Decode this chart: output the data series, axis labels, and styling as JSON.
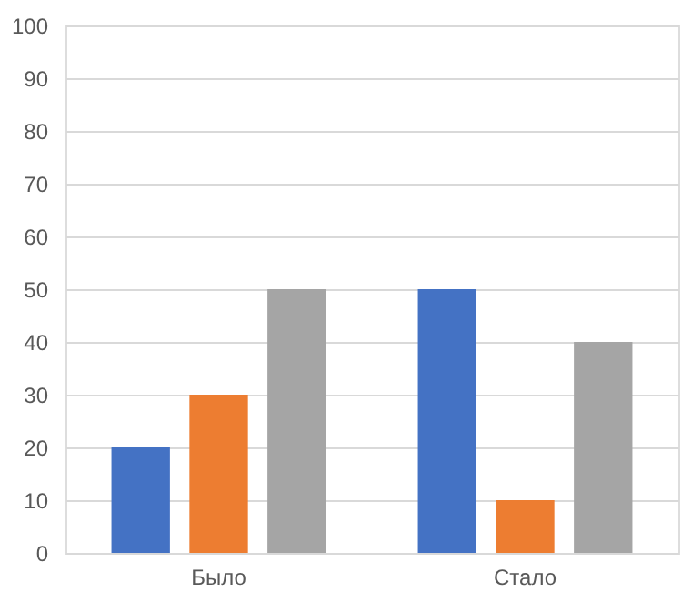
{
  "chart_data": {
    "type": "bar",
    "categories": [
      "Было",
      "Стало"
    ],
    "series": [
      {
        "color": "#4472c4",
        "values": [
          20,
          50
        ]
      },
      {
        "color": "#ed7d31",
        "values": [
          30,
          10
        ]
      },
      {
        "color": "#a5a5a5",
        "values": [
          50,
          40
        ]
      }
    ],
    "ylim": [
      0,
      100
    ],
    "yticks": [
      0,
      10,
      20,
      30,
      40,
      50,
      60,
      70,
      80,
      90,
      100
    ],
    "grid": "y",
    "legend": false
  }
}
